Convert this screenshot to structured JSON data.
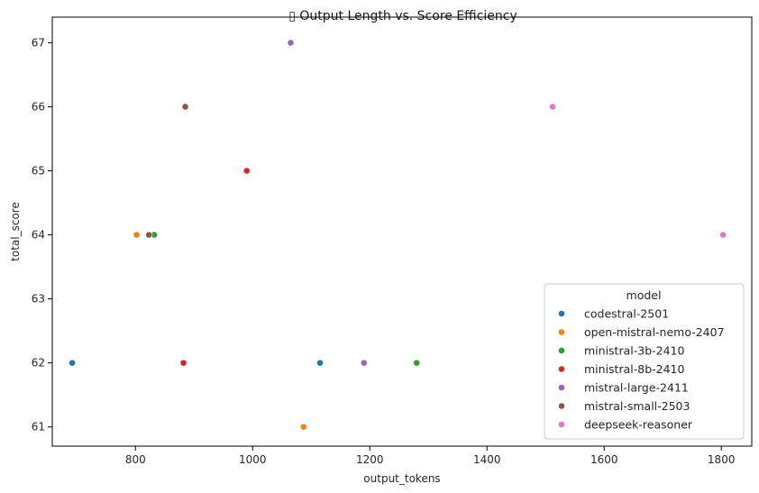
{
  "chart_data": {
    "type": "scatter",
    "title": "▯ Output Length vs. Score Efficiency",
    "xlabel": "output_tokens",
    "ylabel": "total_score",
    "xlim": [
      658,
      1852
    ],
    "ylim": [
      60.7,
      67.4
    ],
    "xticks": [
      800,
      1000,
      1200,
      1400,
      1600,
      1800
    ],
    "yticks": [
      61,
      62,
      63,
      64,
      65,
      66,
      67
    ],
    "grid": false,
    "legend": {
      "title": "model",
      "placement": "lower-right"
    },
    "series": [
      {
        "name": "codestral-2501",
        "color": "#1f77b4",
        "points": [
          {
            "x": 692,
            "y": 62
          },
          {
            "x": 1115,
            "y": 62
          }
        ]
      },
      {
        "name": "open-mistral-nemo-2407",
        "color": "#ff7f0e",
        "points": [
          {
            "x": 802,
            "y": 64
          },
          {
            "x": 1087,
            "y": 61
          }
        ]
      },
      {
        "name": "ministral-3b-2410",
        "color": "#2ca02c",
        "points": [
          {
            "x": 832,
            "y": 64
          },
          {
            "x": 1280,
            "y": 62
          }
        ]
      },
      {
        "name": "ministral-8b-2410",
        "color": "#d62728",
        "points": [
          {
            "x": 882,
            "y": 62
          },
          {
            "x": 990,
            "y": 65
          }
        ]
      },
      {
        "name": "mistral-large-2411",
        "color": "#9467bd",
        "points": [
          {
            "x": 1065,
            "y": 67
          },
          {
            "x": 1190,
            "y": 62
          }
        ]
      },
      {
        "name": "mistral-small-2503",
        "color": "#8c564b",
        "points": [
          {
            "x": 823,
            "y": 64
          },
          {
            "x": 885,
            "y": 66
          }
        ]
      },
      {
        "name": "deepseek-reasoner",
        "color": "#e377c2",
        "points": [
          {
            "x": 1512,
            "y": 66
          },
          {
            "x": 1803,
            "y": 64
          }
        ]
      }
    ]
  }
}
